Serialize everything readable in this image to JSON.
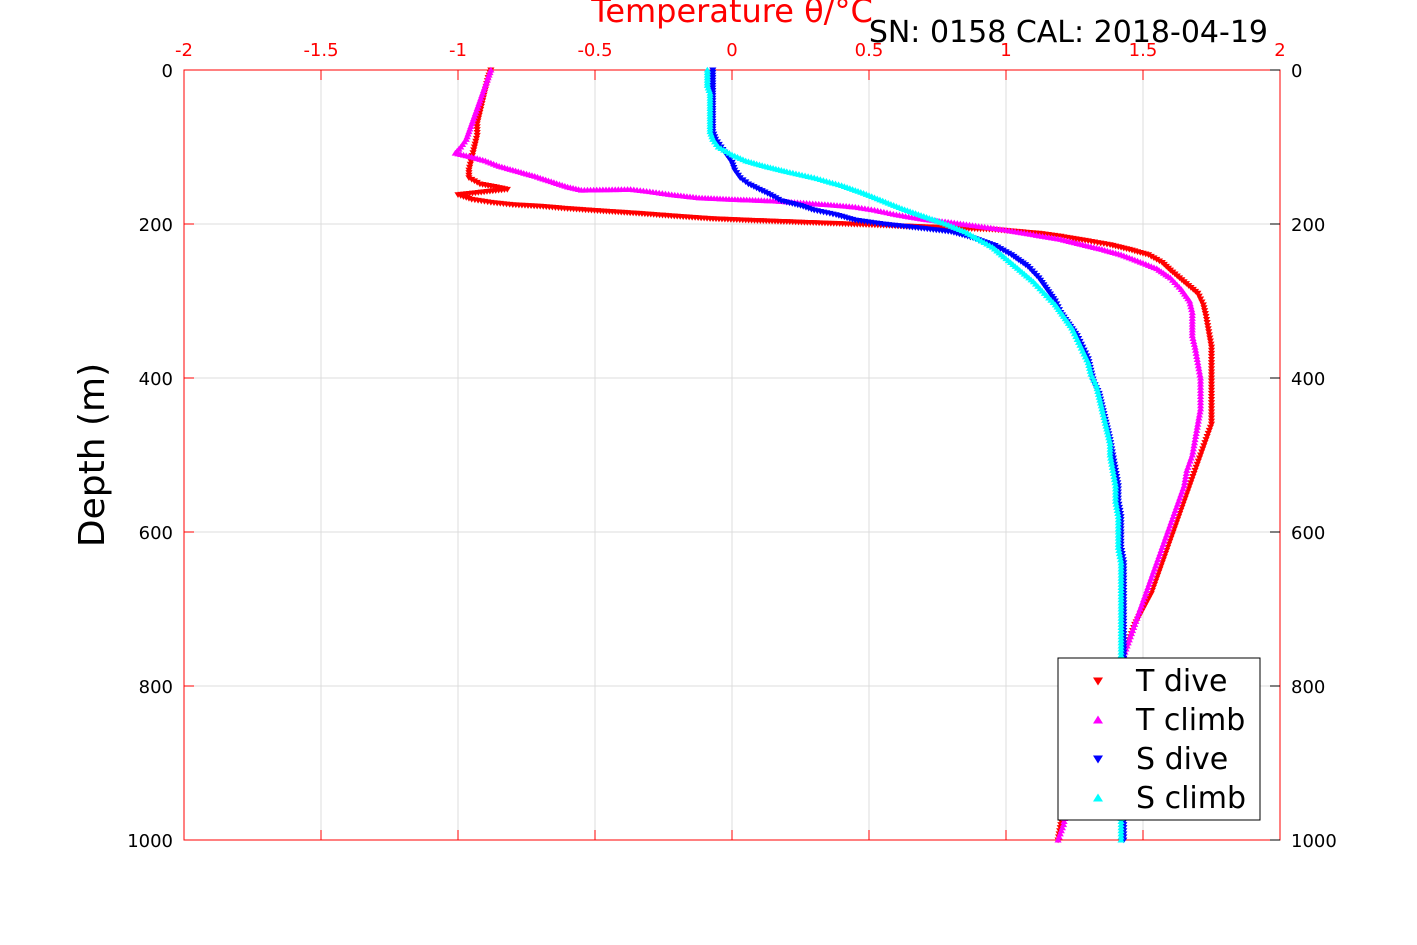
{
  "chart_data": {
    "type": "scatter",
    "title": "Temperature θ/°C",
    "annotation": "SN: 0158  CAL: 2018-04-19",
    "xlabel_top": "Temperature θ/°C",
    "ylabel": "Depth (m)",
    "xlim": [
      -2,
      2
    ],
    "ylim": [
      0,
      1000
    ],
    "y_reversed": true,
    "x_ticks": [
      -2,
      -1.5,
      -1,
      -0.5,
      0,
      0.5,
      1,
      1.5,
      2
    ],
    "x_tick_labels": [
      "-2",
      "-1.5",
      "-1",
      "-0.5",
      "0",
      "0.5",
      "1",
      "1.5",
      "2"
    ],
    "y_ticks": [
      0,
      200,
      400,
      600,
      800,
      1000
    ],
    "y_tick_labels": [
      "0",
      "200",
      "400",
      "600",
      "800",
      "1000"
    ],
    "grid": true,
    "legend_position": "bottom-right",
    "series": [
      {
        "name": "T dive",
        "color": "#ff0000",
        "marker": "triangle-down",
        "points": [
          [
            -0.88,
            0
          ],
          [
            -0.89,
            10
          ],
          [
            -0.9,
            25
          ],
          [
            -0.91,
            40
          ],
          [
            -0.92,
            55
          ],
          [
            -0.93,
            70
          ],
          [
            -0.93,
            85
          ],
          [
            -0.94,
            100
          ],
          [
            -0.95,
            115
          ],
          [
            -0.96,
            130
          ],
          [
            -0.96,
            140
          ],
          [
            -0.92,
            148
          ],
          [
            -0.86,
            152
          ],
          [
            -0.82,
            155
          ],
          [
            -1.0,
            162
          ],
          [
            -0.95,
            168
          ],
          [
            -0.88,
            172
          ],
          [
            -0.8,
            175
          ],
          [
            -0.7,
            177
          ],
          [
            -0.6,
            180
          ],
          [
            -0.48,
            183
          ],
          [
            -0.35,
            186
          ],
          [
            -0.2,
            190
          ],
          [
            -0.08,
            193
          ],
          [
            0.05,
            195
          ],
          [
            0.2,
            197
          ],
          [
            0.35,
            199
          ],
          [
            0.5,
            201
          ],
          [
            0.65,
            203
          ],
          [
            0.8,
            205
          ],
          [
            0.95,
            207
          ],
          [
            1.05,
            210
          ],
          [
            1.12,
            212
          ],
          [
            1.2,
            216
          ],
          [
            1.3,
            222
          ],
          [
            1.38,
            227
          ],
          [
            1.45,
            233
          ],
          [
            1.52,
            240
          ],
          [
            1.57,
            250
          ],
          [
            1.6,
            260
          ],
          [
            1.65,
            275
          ],
          [
            1.7,
            290
          ],
          [
            1.72,
            305
          ],
          [
            1.73,
            320
          ],
          [
            1.74,
            340
          ],
          [
            1.75,
            360
          ],
          [
            1.75,
            380
          ],
          [
            1.75,
            400
          ],
          [
            1.75,
            420
          ],
          [
            1.75,
            440
          ],
          [
            1.75,
            460
          ],
          [
            1.73,
            480
          ],
          [
            1.71,
            500
          ],
          [
            1.69,
            520
          ],
          [
            1.67,
            540
          ],
          [
            1.65,
            560
          ],
          [
            1.63,
            580
          ],
          [
            1.61,
            600
          ],
          [
            1.59,
            620
          ],
          [
            1.57,
            640
          ],
          [
            1.55,
            660
          ],
          [
            1.53,
            680
          ],
          [
            1.5,
            700
          ],
          [
            1.47,
            720
          ],
          [
            1.45,
            740
          ],
          [
            1.43,
            760
          ],
          [
            1.41,
            780
          ],
          [
            1.38,
            800
          ],
          [
            1.35,
            820
          ],
          [
            1.33,
            840
          ],
          [
            1.31,
            860
          ],
          [
            1.29,
            880
          ],
          [
            1.27,
            900
          ],
          [
            1.25,
            920
          ],
          [
            1.23,
            940
          ],
          [
            1.21,
            960
          ],
          [
            1.2,
            980
          ],
          [
            1.19,
            1000
          ]
        ]
      },
      {
        "name": "T climb",
        "color": "#ff00ff",
        "marker": "triangle-up",
        "points": [
          [
            -0.88,
            0
          ],
          [
            -0.89,
            10
          ],
          [
            -0.9,
            20
          ],
          [
            -0.91,
            30
          ],
          [
            -0.92,
            40
          ],
          [
            -0.93,
            50
          ],
          [
            -0.94,
            60
          ],
          [
            -0.95,
            70
          ],
          [
            -0.96,
            80
          ],
          [
            -0.97,
            90
          ],
          [
            -0.99,
            100
          ],
          [
            -1.01,
            108
          ],
          [
            -0.95,
            113
          ],
          [
            -0.9,
            118
          ],
          [
            -0.85,
            125
          ],
          [
            -0.78,
            132
          ],
          [
            -0.72,
            138
          ],
          [
            -0.66,
            145
          ],
          [
            -0.6,
            152
          ],
          [
            -0.55,
            156
          ],
          [
            -0.37,
            155
          ],
          [
            -0.3,
            158
          ],
          [
            -0.22,
            162
          ],
          [
            -0.12,
            166
          ],
          [
            0.0,
            168
          ],
          [
            0.15,
            170
          ],
          [
            0.35,
            175
          ],
          [
            0.45,
            178
          ],
          [
            0.52,
            182
          ],
          [
            0.6,
            188
          ],
          [
            0.7,
            194
          ],
          [
            0.8,
            198
          ],
          [
            0.9,
            203
          ],
          [
            1.0,
            208
          ],
          [
            1.1,
            214
          ],
          [
            1.2,
            220
          ],
          [
            1.28,
            227
          ],
          [
            1.35,
            233
          ],
          [
            1.42,
            240
          ],
          [
            1.48,
            248
          ],
          [
            1.55,
            258
          ],
          [
            1.6,
            270
          ],
          [
            1.64,
            285
          ],
          [
            1.67,
            300
          ],
          [
            1.68,
            315
          ],
          [
            1.68,
            330
          ],
          [
            1.68,
            345
          ],
          [
            1.69,
            360
          ],
          [
            1.7,
            380
          ],
          [
            1.71,
            400
          ],
          [
            1.71,
            420
          ],
          [
            1.71,
            440
          ],
          [
            1.7,
            460
          ],
          [
            1.69,
            480
          ],
          [
            1.68,
            500
          ],
          [
            1.66,
            520
          ],
          [
            1.65,
            540
          ],
          [
            1.63,
            560
          ],
          [
            1.61,
            580
          ],
          [
            1.59,
            600
          ],
          [
            1.57,
            620
          ],
          [
            1.55,
            640
          ],
          [
            1.53,
            660
          ],
          [
            1.51,
            680
          ],
          [
            1.49,
            700
          ],
          [
            1.47,
            720
          ],
          [
            1.45,
            740
          ],
          [
            1.43,
            760
          ],
          [
            1.41,
            780
          ],
          [
            1.39,
            800
          ],
          [
            1.36,
            820
          ],
          [
            1.34,
            840
          ],
          [
            1.32,
            860
          ],
          [
            1.3,
            880
          ],
          [
            1.28,
            900
          ],
          [
            1.26,
            920
          ],
          [
            1.24,
            940
          ],
          [
            1.22,
            960
          ],
          [
            1.21,
            980
          ],
          [
            1.19,
            1000
          ]
        ]
      },
      {
        "name": "S dive",
        "color": "#0000ff",
        "marker": "triangle-down",
        "points": [
          [
            -0.07,
            0
          ],
          [
            -0.07,
            10
          ],
          [
            -0.07,
            20
          ],
          [
            -0.07,
            30
          ],
          [
            -0.07,
            40
          ],
          [
            -0.07,
            50
          ],
          [
            -0.07,
            60
          ],
          [
            -0.07,
            70
          ],
          [
            -0.07,
            80
          ],
          [
            -0.06,
            90
          ],
          [
            -0.04,
            100
          ],
          [
            -0.02,
            110
          ],
          [
            0.0,
            120
          ],
          [
            0.01,
            130
          ],
          [
            0.03,
            140
          ],
          [
            0.06,
            148
          ],
          [
            0.1,
            155
          ],
          [
            0.14,
            162
          ],
          [
            0.18,
            170
          ],
          [
            0.25,
            176
          ],
          [
            0.3,
            182
          ],
          [
            0.38,
            188
          ],
          [
            0.45,
            195
          ],
          [
            0.55,
            200
          ],
          [
            0.68,
            205
          ],
          [
            0.8,
            210
          ],
          [
            0.88,
            218
          ],
          [
            0.96,
            228
          ],
          [
            1.02,
            240
          ],
          [
            1.08,
            255
          ],
          [
            1.12,
            270
          ],
          [
            1.15,
            285
          ],
          [
            1.18,
            300
          ],
          [
            1.2,
            315
          ],
          [
            1.23,
            330
          ],
          [
            1.26,
            345
          ],
          [
            1.28,
            360
          ],
          [
            1.3,
            375
          ],
          [
            1.31,
            390
          ],
          [
            1.32,
            405
          ],
          [
            1.34,
            420
          ],
          [
            1.35,
            435
          ],
          [
            1.36,
            450
          ],
          [
            1.37,
            465
          ],
          [
            1.38,
            480
          ],
          [
            1.39,
            500
          ],
          [
            1.4,
            520
          ],
          [
            1.41,
            540
          ],
          [
            1.41,
            560
          ],
          [
            1.42,
            580
          ],
          [
            1.42,
            600
          ],
          [
            1.42,
            620
          ],
          [
            1.43,
            640
          ],
          [
            1.43,
            660
          ],
          [
            1.43,
            680
          ],
          [
            1.43,
            700
          ],
          [
            1.43,
            720
          ],
          [
            1.43,
            740
          ],
          [
            1.43,
            760
          ],
          [
            1.43,
            780
          ],
          [
            1.43,
            800
          ],
          [
            1.43,
            820
          ],
          [
            1.43,
            840
          ],
          [
            1.43,
            860
          ],
          [
            1.43,
            880
          ],
          [
            1.43,
            900
          ],
          [
            1.43,
            920
          ],
          [
            1.43,
            940
          ],
          [
            1.43,
            960
          ],
          [
            1.43,
            980
          ],
          [
            1.43,
            1000
          ]
        ]
      },
      {
        "name": "S climb",
        "color": "#00ffff",
        "marker": "triangle-up",
        "points": [
          [
            -0.09,
            0
          ],
          [
            -0.09,
            10
          ],
          [
            -0.09,
            20
          ],
          [
            -0.08,
            30
          ],
          [
            -0.08,
            40
          ],
          [
            -0.08,
            50
          ],
          [
            -0.08,
            60
          ],
          [
            -0.08,
            70
          ],
          [
            -0.08,
            80
          ],
          [
            -0.07,
            90
          ],
          [
            -0.05,
            100
          ],
          [
            0.0,
            110
          ],
          [
            0.05,
            118
          ],
          [
            0.12,
            125
          ],
          [
            0.2,
            132
          ],
          [
            0.3,
            140
          ],
          [
            0.4,
            150
          ],
          [
            0.48,
            160
          ],
          [
            0.55,
            170
          ],
          [
            0.62,
            180
          ],
          [
            0.7,
            190
          ],
          [
            0.78,
            200
          ],
          [
            0.85,
            210
          ],
          [
            0.9,
            220
          ],
          [
            0.95,
            230
          ],
          [
            1.0,
            245
          ],
          [
            1.05,
            260
          ],
          [
            1.1,
            275
          ],
          [
            1.14,
            290
          ],
          [
            1.18,
            305
          ],
          [
            1.21,
            320
          ],
          [
            1.24,
            335
          ],
          [
            1.26,
            350
          ],
          [
            1.28,
            365
          ],
          [
            1.3,
            380
          ],
          [
            1.31,
            395
          ],
          [
            1.33,
            410
          ],
          [
            1.34,
            425
          ],
          [
            1.35,
            440
          ],
          [
            1.36,
            455
          ],
          [
            1.37,
            470
          ],
          [
            1.38,
            485
          ],
          [
            1.38,
            500
          ],
          [
            1.39,
            520
          ],
          [
            1.4,
            540
          ],
          [
            1.4,
            560
          ],
          [
            1.41,
            580
          ],
          [
            1.41,
            600
          ],
          [
            1.41,
            620
          ],
          [
            1.42,
            640
          ],
          [
            1.42,
            660
          ],
          [
            1.42,
            680
          ],
          [
            1.42,
            700
          ],
          [
            1.42,
            720
          ],
          [
            1.42,
            740
          ],
          [
            1.42,
            760
          ],
          [
            1.42,
            780
          ],
          [
            1.42,
            800
          ],
          [
            1.42,
            820
          ],
          [
            1.42,
            840
          ],
          [
            1.42,
            860
          ],
          [
            1.42,
            880
          ],
          [
            1.42,
            900
          ],
          [
            1.42,
            920
          ],
          [
            1.42,
            940
          ],
          [
            1.42,
            960
          ],
          [
            1.42,
            980
          ],
          [
            1.42,
            1000
          ]
        ]
      }
    ]
  }
}
